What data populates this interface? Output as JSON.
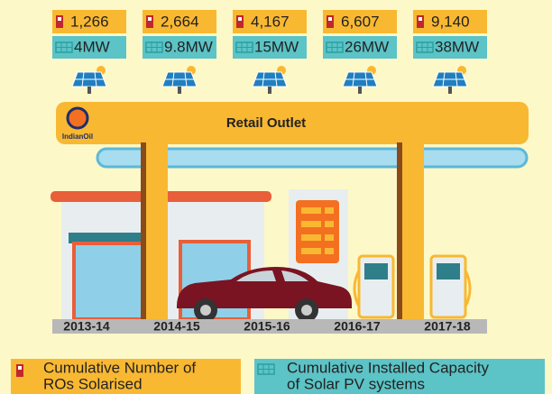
{
  "title": "Retail Outlet",
  "brand": "IndianOil",
  "columns": [
    {
      "year": "2013-14",
      "ros": "1,266",
      "capacity": "4MW"
    },
    {
      "year": "2014-15",
      "ros": "2,664",
      "capacity": "9.8MW"
    },
    {
      "year": "2015-16",
      "ros": "4,167",
      "capacity": "15MW"
    },
    {
      "year": "2016-17",
      "ros": "6,607",
      "capacity": "26MW"
    },
    {
      "year": "2017-18",
      "ros": "9,140",
      "capacity": "38MW"
    }
  ],
  "legend": [
    {
      "lines": [
        "Cumulative Number of",
        "ROs Solarised"
      ]
    },
    {
      "lines": [
        "Cumulative Installed Capacity",
        "of Solar PV systems"
      ]
    }
  ]
}
